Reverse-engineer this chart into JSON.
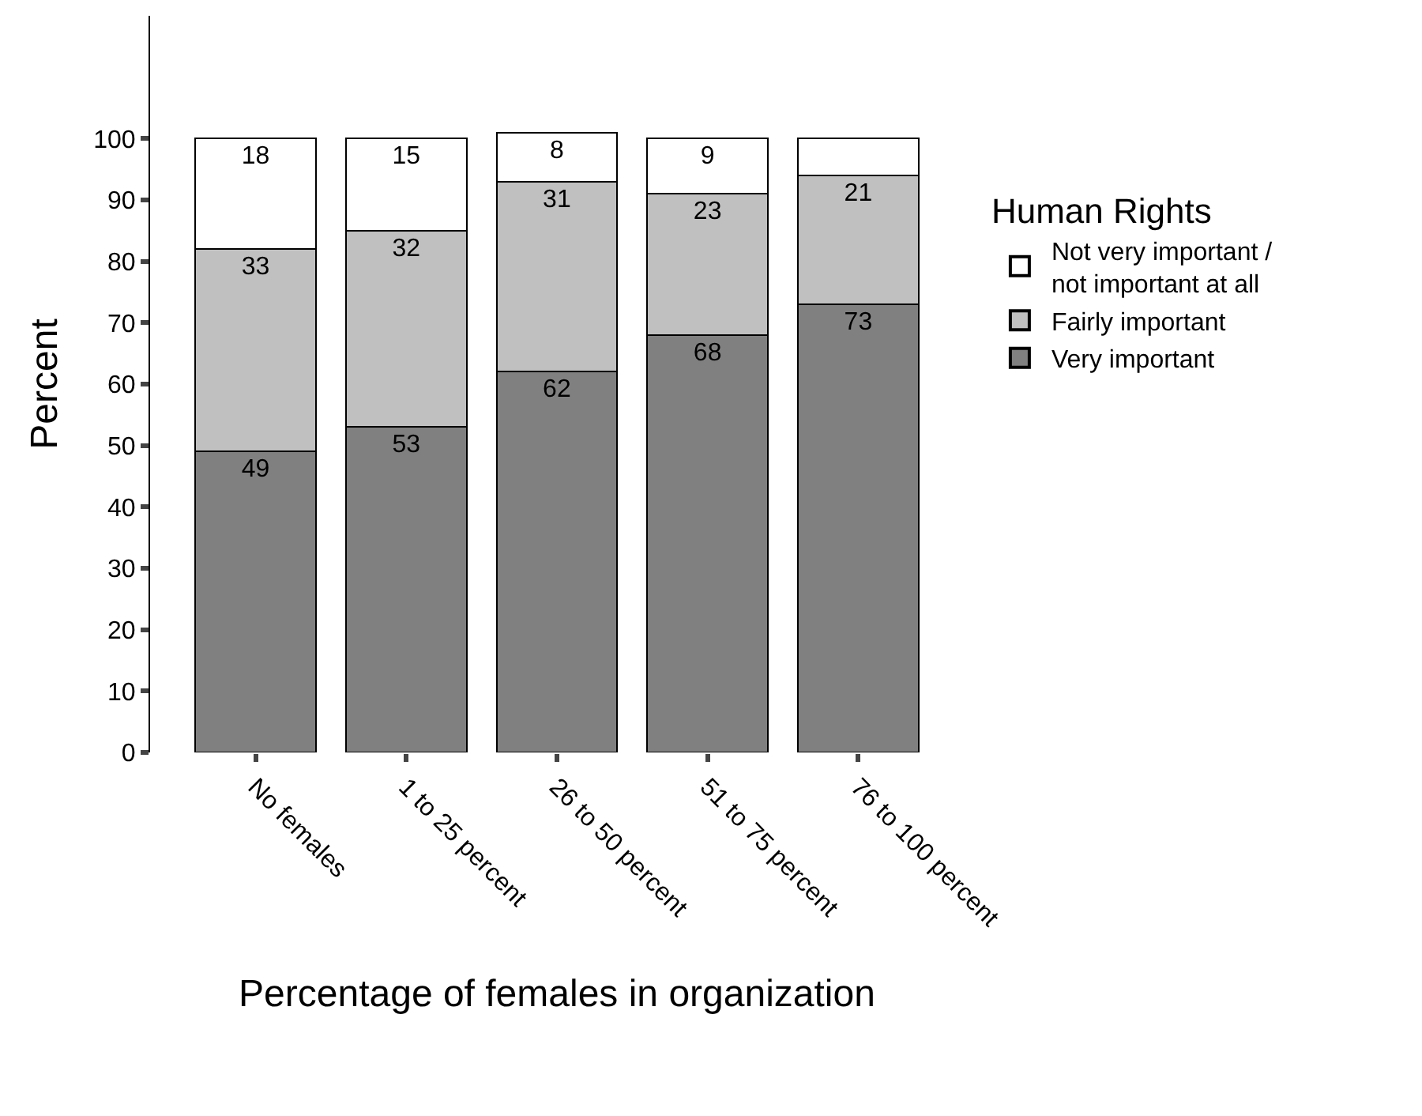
{
  "chart_data": {
    "type": "bar",
    "stacked": true,
    "xlabel": "Percentage of females in organization",
    "ylabel": "Percent",
    "legend_title": "Human Rights",
    "legend": "right",
    "categories": [
      "No females",
      "1 to 25 percent",
      "26 to 50 percent",
      "51 to 75 percent",
      "76 to 100 percent"
    ],
    "series": [
      {
        "name": "Very important",
        "color": "#808080",
        "values": [
          49,
          53,
          62,
          68,
          73
        ],
        "value_labels": [
          "49",
          "53",
          "62",
          "68",
          "73"
        ]
      },
      {
        "name": "Fairly important",
        "color": "#c0c0c0",
        "values": [
          33,
          32,
          31,
          23,
          21
        ],
        "value_labels": [
          "33",
          "32",
          "31",
          "23",
          "21"
        ]
      },
      {
        "name": "Not very important / not important at all",
        "color": "#ffffff",
        "values": [
          18,
          15,
          8,
          9,
          6
        ],
        "value_labels": [
          "18",
          "15",
          "8",
          "9",
          null
        ]
      }
    ],
    "ylim": [
      0,
      120
    ],
    "yticks": [
      0,
      10,
      20,
      30,
      40,
      50,
      60,
      70,
      80,
      90,
      100
    ],
    "grid": false
  }
}
